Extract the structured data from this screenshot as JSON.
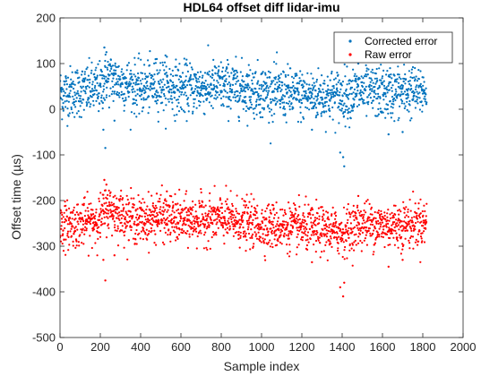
{
  "chart_data": {
    "type": "scatter",
    "title": "HDL64 offset diff lidar-imu",
    "xlabel": "Sample index",
    "ylabel": "Offset time (µs)",
    "xlim": [
      0,
      2000
    ],
    "ylim": [
      -500,
      200
    ],
    "xticks": [
      "0",
      "200",
      "400",
      "600",
      "800",
      "1000",
      "1200",
      "1400",
      "1600",
      "1800",
      "2000"
    ],
    "yticks": [
      "-500",
      "-400",
      "-300",
      "-200",
      "-100",
      "0",
      "100",
      "200"
    ],
    "grid": false,
    "legend_position": "top-right",
    "n_samples": 1820,
    "series": [
      {
        "name": "Corrected error",
        "color": "#0072BD",
        "marker": "dot",
        "trend": [
          [
            0,
            35
          ],
          [
            100,
            40
          ],
          [
            200,
            45
          ],
          [
            230,
            70
          ],
          [
            300,
            60
          ],
          [
            400,
            45
          ],
          [
            500,
            55
          ],
          [
            600,
            45
          ],
          [
            800,
            50
          ],
          [
            1000,
            40
          ],
          [
            1200,
            30
          ],
          [
            1400,
            30
          ],
          [
            1500,
            40
          ],
          [
            1600,
            35
          ],
          [
            1800,
            40
          ]
        ],
        "spread": 28,
        "outliers": [
          [
            220,
            135
          ],
          [
            230,
            125
          ],
          [
            215,
            -45
          ],
          [
            225,
            -85
          ],
          [
            270,
            -25
          ],
          [
            1390,
            -95
          ],
          [
            1405,
            -105
          ],
          [
            1410,
            -125
          ],
          [
            1480,
            100
          ],
          [
            1250,
            -45
          ],
          [
            1630,
            -55
          ],
          [
            1700,
            -50
          ],
          [
            480,
            110
          ],
          [
            530,
            115
          ]
        ]
      },
      {
        "name": "Raw error",
        "color": "#FF0000",
        "marker": "dot",
        "trend": [
          [
            0,
            -255
          ],
          [
            100,
            -250
          ],
          [
            200,
            -240
          ],
          [
            230,
            -215
          ],
          [
            300,
            -230
          ],
          [
            400,
            -245
          ],
          [
            500,
            -235
          ],
          [
            600,
            -245
          ],
          [
            800,
            -240
          ],
          [
            1000,
            -255
          ],
          [
            1200,
            -260
          ],
          [
            1400,
            -270
          ],
          [
            1500,
            -250
          ],
          [
            1600,
            -255
          ],
          [
            1800,
            -250
          ]
        ],
        "spread": 25,
        "outliers": [
          [
            220,
            -155
          ],
          [
            230,
            -165
          ],
          [
            215,
            -330
          ],
          [
            225,
            -375
          ],
          [
            270,
            -320
          ],
          [
            1390,
            -390
          ],
          [
            1405,
            -410
          ],
          [
            1410,
            -380
          ],
          [
            1480,
            -190
          ],
          [
            1250,
            -335
          ],
          [
            1630,
            -345
          ],
          [
            1700,
            -330
          ],
          [
            480,
            -185
          ],
          [
            530,
            -180
          ]
        ]
      }
    ]
  }
}
